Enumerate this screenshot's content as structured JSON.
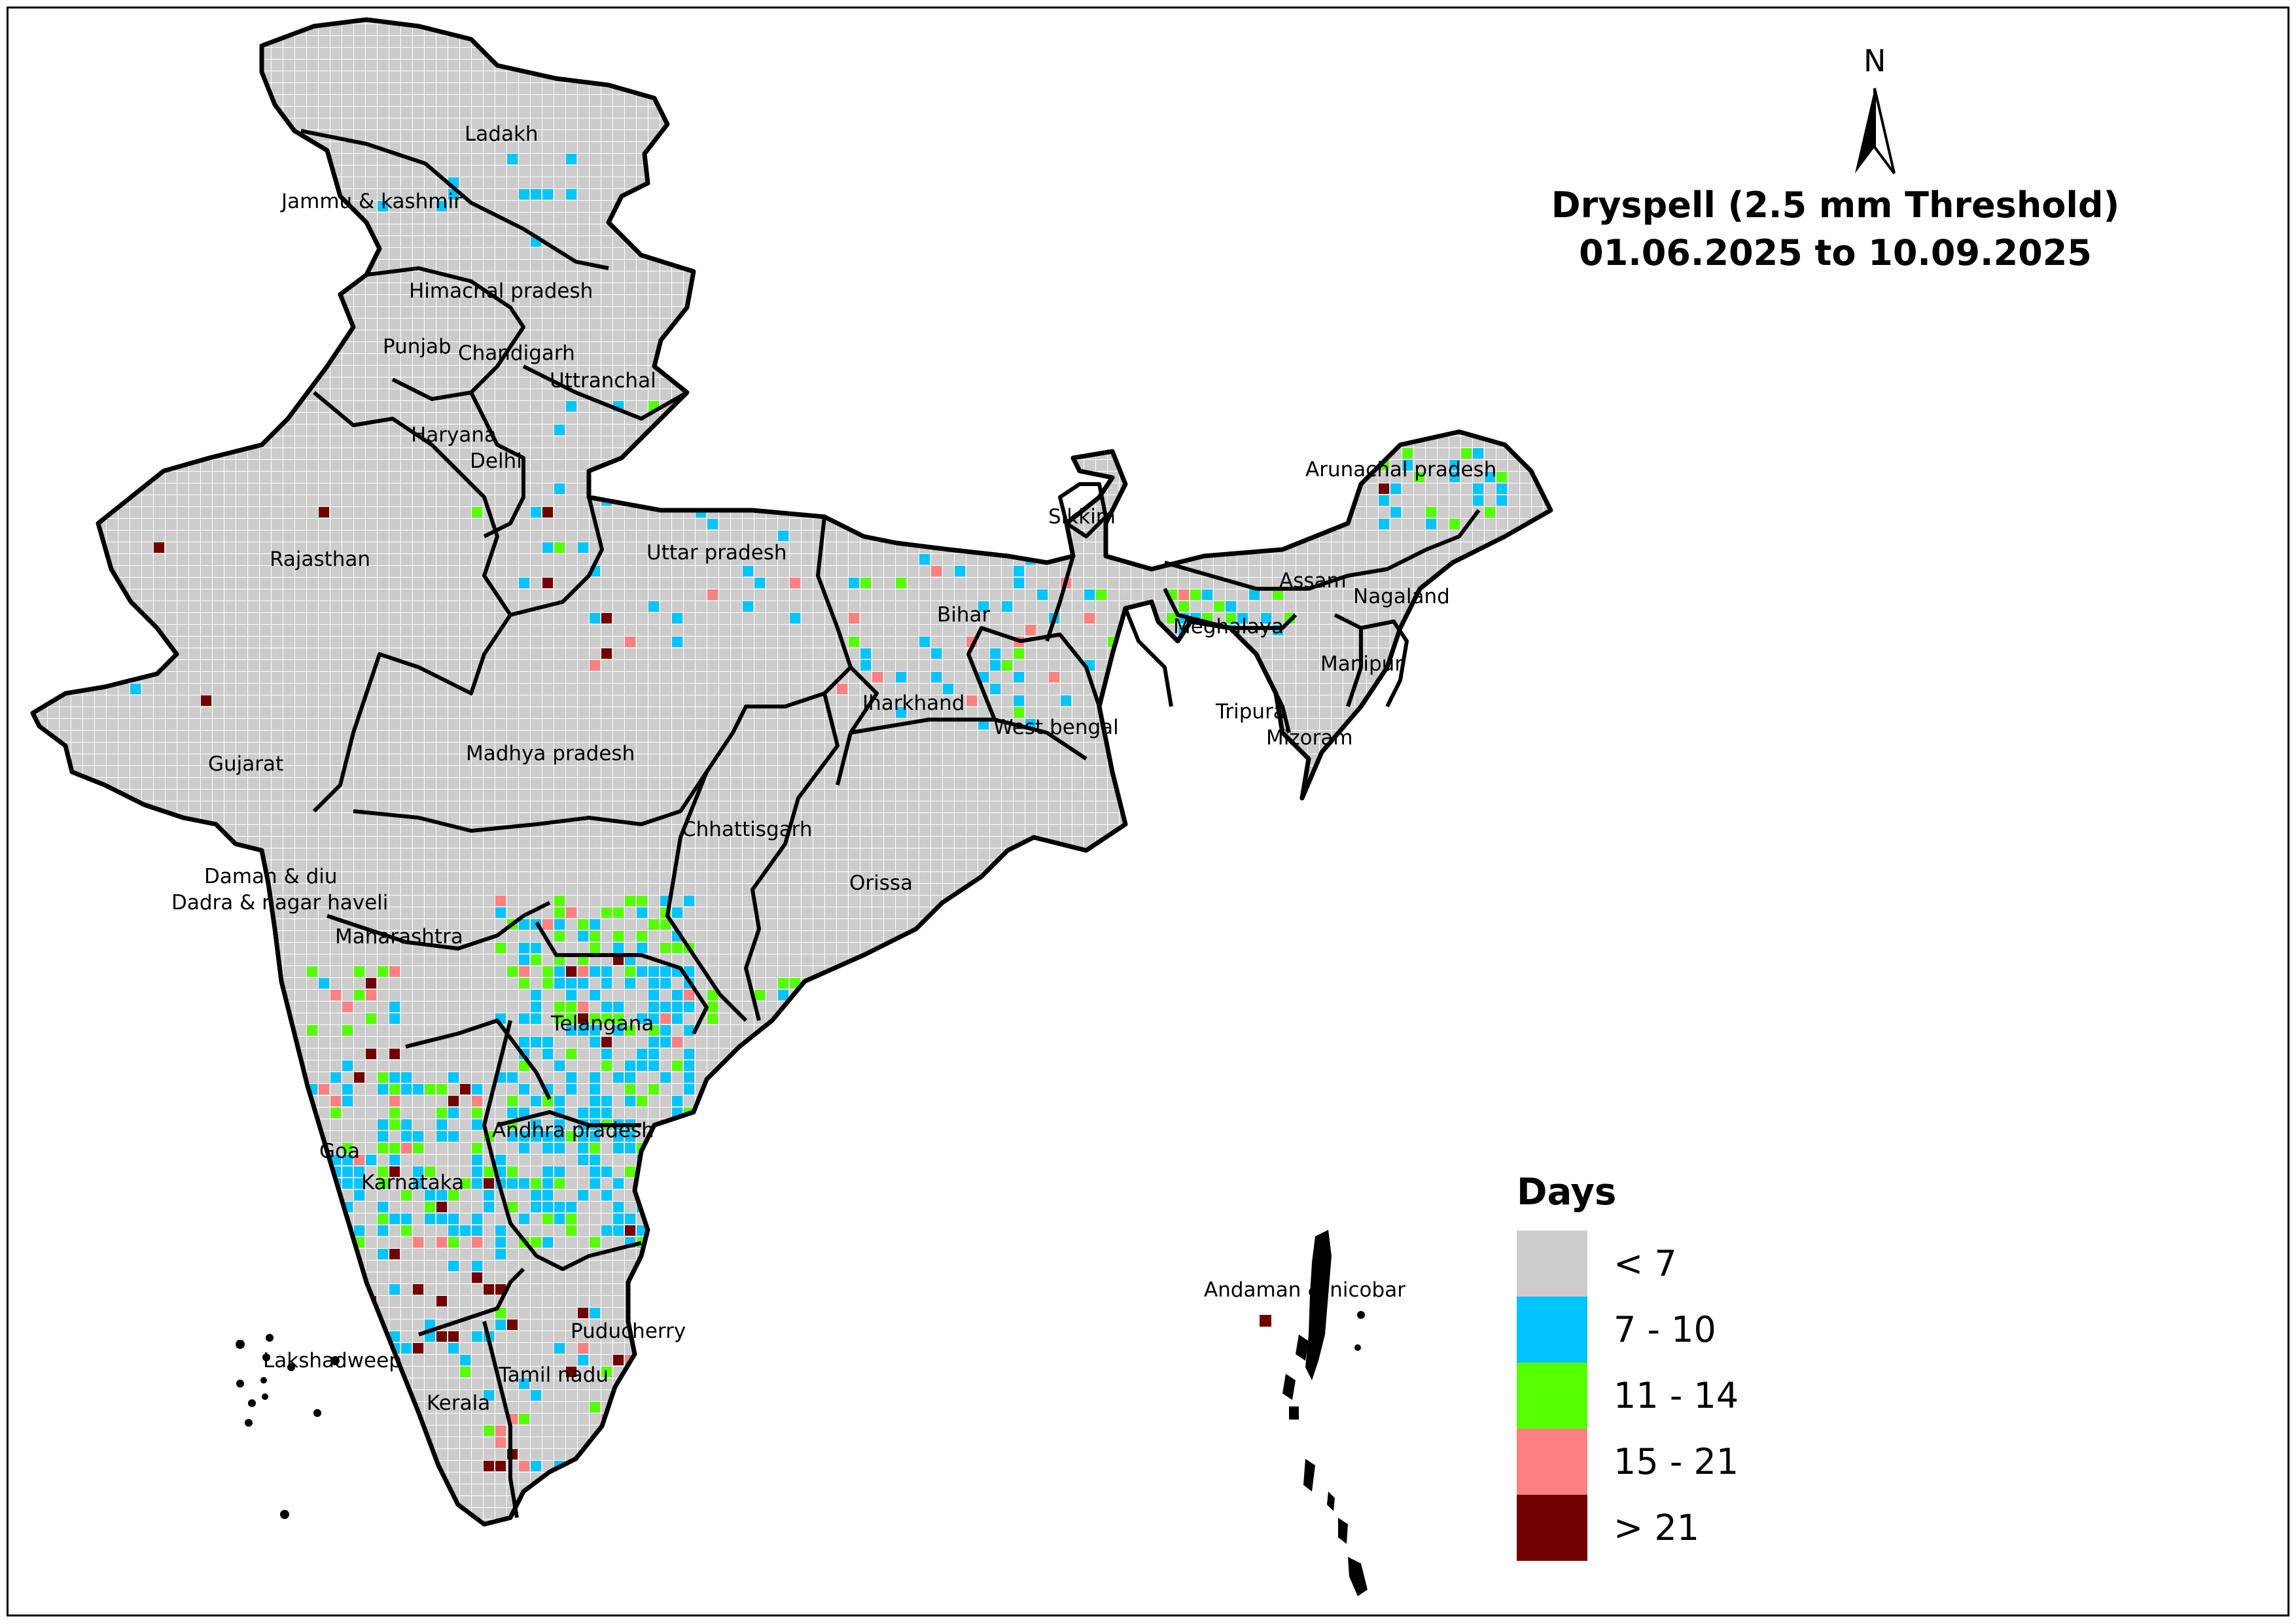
{
  "title": {
    "line1": "Dryspell (2.5 mm Threshold)",
    "line2": "01.06.2025 to 10.09.2025"
  },
  "north": {
    "label": "N",
    "icon": "north-arrow-icon"
  },
  "legend": {
    "title": "Days",
    "classes": [
      {
        "label": "< 7",
        "color": "#cccccc"
      },
      {
        "label": "7 - 10",
        "color": "#00c5ff"
      },
      {
        "label": "11 - 14",
        "color": "#55ff00"
      },
      {
        "label": "15 - 21",
        "color": "#ff8080"
      },
      {
        "label": "> 21",
        "color": "#730000"
      }
    ]
  },
  "regions": [
    "Ladakh",
    "Jammu & kashmir",
    "Himachal pradesh",
    "Punjab",
    "Chandigarh",
    "Uttranchal",
    "Haryana",
    "Delhi",
    "Rajasthan",
    "Uttar pradesh",
    "Sikkim",
    "Arunachal pradesh",
    "Assam",
    "Nagaland",
    "Meghalaya",
    "Bihar",
    "Manipur",
    "Jharkhand",
    "West bengal",
    "Tripura",
    "Mizoram",
    "Gujarat",
    "Madhya pradesh",
    "Chhattisgarh",
    "Orissa",
    "Daman & diu",
    "Dadra & nagar haveli",
    "Maharashtra",
    "Telangana",
    "Andhra pradesh",
    "Goa",
    "Karnataka",
    "Puducherry",
    "Lakshadweep",
    "Tamil nadu",
    "Kerala",
    "Andaman & nicobar"
  ]
}
